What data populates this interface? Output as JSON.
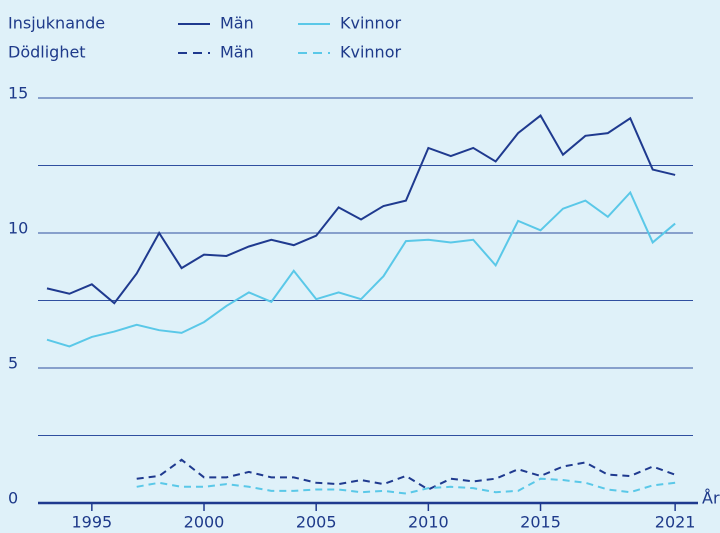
{
  "chart_data": {
    "type": "line",
    "x": [
      1993,
      1994,
      1995,
      1996,
      1997,
      1998,
      1999,
      2000,
      2001,
      2002,
      2003,
      2004,
      2005,
      2006,
      2007,
      2008,
      2009,
      2010,
      2011,
      2012,
      2013,
      2014,
      2015,
      2016,
      2017,
      2018,
      2019,
      2020,
      2021
    ],
    "xlim": [
      1992.6,
      2023
    ],
    "xticks": [
      1995,
      2000,
      2005,
      2010,
      2015,
      2021
    ],
    "xlabel": "År",
    "ylim": [
      0,
      15
    ],
    "yticks": [
      0,
      5,
      10,
      15
    ],
    "ygrid": [
      2.5,
      5,
      7.5,
      10,
      12.5,
      15
    ],
    "series": [
      {
        "group": "Insjuknande",
        "name": "Män",
        "color": "#1f3a8f",
        "dashed": false,
        "values": [
          7.95,
          7.75,
          8.1,
          7.4,
          8.5,
          10.0,
          8.7,
          9.2,
          9.15,
          9.5,
          9.75,
          9.55,
          9.9,
          10.95,
          10.5,
          11.0,
          11.2,
          13.15,
          12.85,
          13.15,
          12.65,
          13.7,
          14.35,
          12.9,
          13.6,
          13.7,
          14.25,
          12.35,
          12.15
        ]
      },
      {
        "group": "Insjuknande",
        "name": "Kvinnor",
        "color": "#5ac8e8",
        "dashed": false,
        "values": [
          6.05,
          5.8,
          6.15,
          6.35,
          6.6,
          6.4,
          6.3,
          6.7,
          7.3,
          7.8,
          7.45,
          8.6,
          7.55,
          7.8,
          7.55,
          8.4,
          9.7,
          9.75,
          9.65,
          9.75,
          8.8,
          10.45,
          10.1,
          10.9,
          11.2,
          10.6,
          11.5,
          9.65,
          10.35
        ]
      },
      {
        "group": "Dödlighet",
        "name": "Män",
        "color": "#1f3a8f",
        "dashed": true,
        "values": [
          null,
          null,
          null,
          null,
          0.9,
          1.0,
          1.6,
          0.95,
          0.95,
          1.15,
          0.95,
          0.95,
          0.75,
          0.7,
          0.85,
          0.7,
          1.0,
          0.5,
          0.9,
          0.8,
          0.9,
          1.25,
          1.0,
          1.35,
          1.5,
          1.05,
          1.0,
          1.35,
          1.05
        ]
      },
      {
        "group": "Dödlighet",
        "name": "Kvinnor",
        "color": "#5ac8e8",
        "dashed": true,
        "values": [
          null,
          null,
          null,
          null,
          0.6,
          0.75,
          0.6,
          0.6,
          0.7,
          0.6,
          0.45,
          0.45,
          0.5,
          0.5,
          0.4,
          0.45,
          0.35,
          0.55,
          0.6,
          0.55,
          0.4,
          0.45,
          0.9,
          0.85,
          0.75,
          0.5,
          0.4,
          0.65,
          0.75
        ]
      }
    ]
  }
}
